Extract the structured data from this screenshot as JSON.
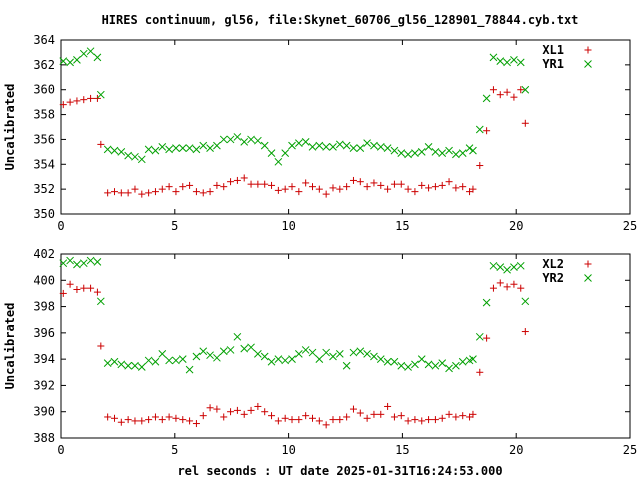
{
  "chart_data": [
    {
      "type": "scatter",
      "title": "HIRES continuum, gl56, file:Skynet_60706_gl56_128901_78844.cyb.txt",
      "xlabel": "",
      "ylabel": "Uncalibrated",
      "xlim": [
        0,
        25
      ],
      "ylim": [
        350,
        364
      ],
      "xticks": [
        "0",
        "5",
        "10",
        "15",
        "20",
        "25"
      ],
      "yticks": [
        "350",
        "352",
        "354",
        "356",
        "358",
        "360",
        "362",
        "364"
      ],
      "legend_position": "top-right",
      "grid": false,
      "series": [
        {
          "name": "XL1",
          "marker": "plus",
          "color": "#cc0000",
          "x": [
            0.1,
            0.4,
            0.7,
            1.0,
            1.3,
            1.6,
            1.75,
            2.05,
            2.35,
            2.65,
            2.95,
            3.25,
            3.55,
            3.85,
            4.15,
            4.45,
            4.75,
            5.05,
            5.35,
            5.65,
            5.95,
            6.25,
            6.55,
            6.85,
            7.15,
            7.45,
            7.75,
            8.05,
            8.35,
            8.65,
            8.95,
            9.25,
            9.55,
            9.85,
            10.15,
            10.45,
            10.75,
            11.05,
            11.35,
            11.65,
            11.95,
            12.25,
            12.55,
            12.85,
            13.15,
            13.45,
            13.75,
            14.05,
            14.35,
            14.65,
            14.95,
            15.25,
            15.55,
            15.85,
            16.15,
            16.45,
            16.75,
            17.05,
            17.35,
            17.65,
            17.95,
            18.1,
            18.4,
            18.7,
            19.0,
            19.3,
            19.6,
            19.9,
            20.2,
            20.4
          ],
          "y": [
            358.8,
            359.0,
            359.1,
            359.2,
            359.3,
            359.3,
            355.6,
            351.7,
            351.8,
            351.7,
            351.7,
            352.0,
            351.6,
            351.7,
            351.8,
            352.0,
            352.2,
            351.8,
            352.2,
            352.3,
            351.8,
            351.7,
            351.8,
            352.3,
            352.2,
            352.6,
            352.7,
            352.9,
            352.4,
            352.4,
            352.4,
            352.3,
            351.9,
            352.0,
            352.2,
            351.8,
            352.5,
            352.2,
            352.0,
            351.6,
            352.1,
            352.0,
            352.2,
            352.7,
            352.6,
            352.2,
            352.5,
            352.3,
            352.0,
            352.4,
            352.4,
            352.0,
            351.8,
            352.3,
            352.1,
            352.2,
            352.3,
            352.6,
            352.1,
            352.2,
            351.8,
            352.0,
            353.9,
            356.7,
            360.0,
            359.6,
            359.8,
            359.4,
            360.0,
            357.3
          ]
        },
        {
          "name": "YR1",
          "marker": "cross",
          "color": "#00a000",
          "x": [
            0.1,
            0.4,
            0.7,
            1.0,
            1.3,
            1.6,
            1.75,
            2.05,
            2.35,
            2.65,
            2.95,
            3.25,
            3.55,
            3.85,
            4.15,
            4.45,
            4.75,
            5.05,
            5.35,
            5.65,
            5.95,
            6.25,
            6.55,
            6.85,
            7.15,
            7.45,
            7.75,
            8.05,
            8.35,
            8.65,
            8.95,
            9.25,
            9.55,
            9.85,
            10.15,
            10.45,
            10.75,
            11.05,
            11.35,
            11.65,
            11.95,
            12.25,
            12.55,
            12.85,
            13.15,
            13.45,
            13.75,
            14.05,
            14.35,
            14.65,
            14.95,
            15.25,
            15.55,
            15.85,
            16.15,
            16.45,
            16.75,
            17.05,
            17.35,
            17.65,
            17.95,
            18.1,
            18.4,
            18.7,
            19.0,
            19.3,
            19.6,
            19.9,
            20.2,
            20.4
          ],
          "y": [
            362.3,
            362.2,
            362.4,
            362.9,
            363.1,
            362.6,
            359.6,
            355.2,
            355.1,
            355.0,
            354.7,
            354.6,
            354.4,
            355.2,
            355.1,
            355.4,
            355.2,
            355.3,
            355.3,
            355.3,
            355.2,
            355.5,
            355.3,
            355.5,
            356.0,
            356.0,
            356.2,
            355.8,
            356.0,
            355.9,
            355.5,
            354.9,
            354.2,
            354.9,
            355.5,
            355.7,
            355.8,
            355.4,
            355.5,
            355.4,
            355.4,
            355.6,
            355.5,
            355.3,
            355.3,
            355.7,
            355.5,
            355.4,
            355.3,
            355.1,
            354.9,
            354.8,
            354.9,
            355.0,
            355.4,
            355.0,
            354.9,
            355.1,
            354.8,
            354.9,
            355.3,
            355.1,
            356.8,
            359.3,
            362.6,
            362.3,
            362.2,
            362.4,
            362.2,
            360.0
          ]
        }
      ]
    },
    {
      "type": "scatter",
      "title": "",
      "xlabel": "rel seconds : UT date 2025-01-31T16:24:53.000",
      "ylabel": "Uncalibrated",
      "xlim": [
        0,
        25
      ],
      "ylim": [
        388,
        402
      ],
      "xticks": [
        "0",
        "5",
        "10",
        "15",
        "20",
        "25"
      ],
      "yticks": [
        "388",
        "390",
        "392",
        "394",
        "396",
        "398",
        "400",
        "402"
      ],
      "legend_position": "top-right",
      "grid": false,
      "series": [
        {
          "name": "XL2",
          "marker": "plus",
          "color": "#cc0000",
          "x": [
            0.1,
            0.4,
            0.7,
            1.0,
            1.3,
            1.6,
            1.75,
            2.05,
            2.35,
            2.65,
            2.95,
            3.25,
            3.55,
            3.85,
            4.15,
            4.45,
            4.75,
            5.05,
            5.35,
            5.65,
            5.95,
            6.25,
            6.55,
            6.85,
            7.15,
            7.45,
            7.75,
            8.05,
            8.35,
            8.65,
            8.95,
            9.25,
            9.55,
            9.85,
            10.15,
            10.45,
            10.75,
            11.05,
            11.35,
            11.65,
            11.95,
            12.25,
            12.55,
            12.85,
            13.15,
            13.45,
            13.75,
            14.05,
            14.35,
            14.65,
            14.95,
            15.25,
            15.55,
            15.85,
            16.15,
            16.45,
            16.75,
            17.05,
            17.35,
            17.65,
            17.95,
            18.1,
            18.4,
            18.7,
            19.0,
            19.3,
            19.6,
            19.9,
            20.2,
            20.4
          ],
          "y": [
            399.0,
            399.7,
            399.3,
            399.4,
            399.4,
            399.1,
            395.0,
            389.6,
            389.5,
            389.2,
            389.4,
            389.3,
            389.3,
            389.4,
            389.6,
            389.4,
            389.6,
            389.5,
            389.4,
            389.3,
            389.1,
            389.7,
            390.3,
            390.2,
            389.6,
            390.0,
            390.1,
            389.8,
            390.1,
            390.4,
            390.0,
            389.7,
            389.3,
            389.5,
            389.4,
            389.4,
            389.7,
            389.5,
            389.3,
            389.0,
            389.4,
            389.4,
            389.6,
            390.2,
            389.9,
            389.5,
            389.8,
            389.8,
            390.4,
            389.6,
            389.7,
            389.3,
            389.4,
            389.3,
            389.4,
            389.4,
            389.5,
            389.8,
            389.6,
            389.7,
            389.6,
            389.8,
            393.0,
            395.6,
            399.4,
            399.8,
            399.5,
            399.7,
            399.4,
            396.1
          ]
        },
        {
          "name": "YR2",
          "marker": "cross",
          "color": "#00a000",
          "x": [
            0.1,
            0.4,
            0.7,
            1.0,
            1.3,
            1.6,
            1.75,
            2.05,
            2.35,
            2.65,
            2.95,
            3.25,
            3.55,
            3.85,
            4.15,
            4.45,
            4.75,
            5.05,
            5.35,
            5.65,
            5.95,
            6.25,
            6.55,
            6.85,
            7.15,
            7.45,
            7.75,
            8.05,
            8.35,
            8.65,
            8.95,
            9.25,
            9.55,
            9.85,
            10.15,
            10.45,
            10.75,
            11.05,
            11.35,
            11.65,
            11.95,
            12.25,
            12.55,
            12.85,
            13.15,
            13.45,
            13.75,
            14.05,
            14.35,
            14.65,
            14.95,
            15.25,
            15.55,
            15.85,
            16.15,
            16.45,
            16.75,
            17.05,
            17.35,
            17.65,
            17.95,
            18.1,
            18.4,
            18.7,
            19.0,
            19.3,
            19.6,
            19.9,
            20.2,
            20.4
          ],
          "y": [
            401.3,
            401.5,
            401.2,
            401.3,
            401.5,
            401.4,
            398.4,
            393.7,
            393.8,
            393.6,
            393.5,
            393.5,
            393.4,
            393.9,
            393.8,
            394.4,
            393.9,
            393.9,
            394.0,
            393.2,
            394.2,
            394.6,
            394.3,
            394.1,
            394.6,
            394.7,
            395.7,
            394.8,
            394.9,
            394.4,
            394.2,
            393.8,
            394.0,
            393.9,
            394.0,
            394.4,
            394.7,
            394.5,
            394.0,
            394.5,
            394.2,
            394.4,
            393.5,
            394.5,
            394.6,
            394.4,
            394.2,
            394.0,
            393.8,
            393.8,
            393.5,
            393.4,
            393.6,
            394.0,
            393.6,
            393.5,
            393.7,
            393.3,
            393.5,
            393.8,
            393.9,
            394.0,
            395.7,
            398.3,
            401.1,
            401.0,
            400.8,
            401.0,
            401.1,
            398.4
          ]
        }
      ]
    }
  ]
}
